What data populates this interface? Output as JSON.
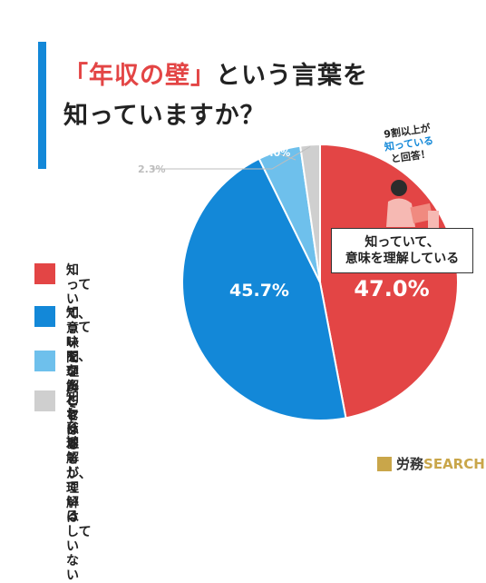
{
  "title": {
    "highlight": "「年収の壁」",
    "line1_rest": "という言葉を",
    "line2": "知っていますか？"
  },
  "chart_data": {
    "type": "pie",
    "title": "「年収の壁」という言葉を知っていますか？",
    "slices": [
      {
        "label": "知っていて、\n意味を理解している",
        "value": 47.0,
        "color": "#e34545",
        "display": "47.0%"
      },
      {
        "label": "知っていて、\nなんとなく理解している",
        "value": 45.7,
        "color": "#1388d8",
        "display": "45.7%"
      },
      {
        "label": "聞いたことはあるが、\n理解はしていない",
        "value": 5.0,
        "color": "#6ec0ec",
        "display": "5.0%"
      },
      {
        "label": "知らない",
        "value": 2.3,
        "color": "#cfcfcf",
        "display": "2.3%"
      }
    ],
    "legend_position": "left"
  },
  "callout": {
    "text": "知っていて、\n意味を理解している"
  },
  "bubble": {
    "line1": "9割以上が",
    "line2": "知っている",
    "line3": "と回答！"
  },
  "logo": {
    "prefix": "労務",
    "suffix": "SEARCH"
  }
}
